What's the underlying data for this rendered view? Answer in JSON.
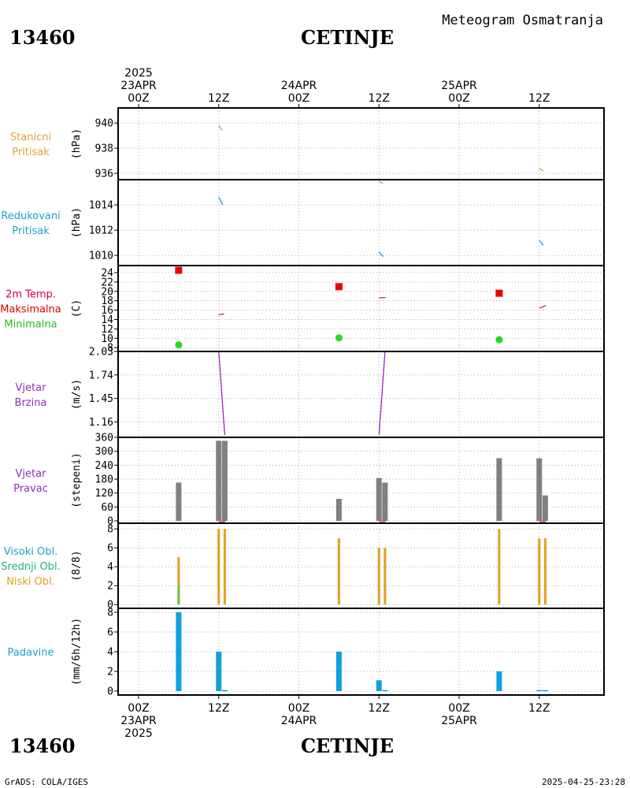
{
  "header": {
    "station_id": "13460",
    "station_name": "CETINJE",
    "product": "Meteogram Osmatranja"
  },
  "footer": {
    "station_id": "13460",
    "station_name": "CETINJE",
    "credit": "GrADS: COLA/IGES",
    "timestamp": "2025-04-25-23:28"
  },
  "time_axis": {
    "top_labels": [
      {
        "t": 0,
        "lines": [
          "2025",
          "23APR",
          "00Z"
        ]
      },
      {
        "t": 12,
        "lines": [
          "12Z"
        ]
      },
      {
        "t": 24,
        "lines": [
          "24APR",
          "00Z"
        ]
      },
      {
        "t": 36,
        "lines": [
          "12Z"
        ]
      },
      {
        "t": 48,
        "lines": [
          "25APR",
          "00Z"
        ]
      },
      {
        "t": 60,
        "lines": [
          "12Z"
        ]
      }
    ],
    "bottom_labels": [
      {
        "t": 0,
        "lines": [
          "00Z",
          "23APR",
          "2025"
        ]
      },
      {
        "t": 12,
        "lines": [
          "12Z"
        ]
      },
      {
        "t": 24,
        "lines": [
          "00Z",
          "24APR"
        ]
      },
      {
        "t": 36,
        "lines": [
          "12Z"
        ]
      },
      {
        "t": 48,
        "lines": [
          "00Z",
          "25APR"
        ]
      },
      {
        "t": 60,
        "lines": [
          "12Z"
        ]
      }
    ]
  },
  "chart_data": [
    {
      "type": "line",
      "panel": "station_pressure",
      "labels": [
        "Stanicni",
        "Pritisak"
      ],
      "label_color": "#e0a040",
      "unit": "(hPa)",
      "ylim": [
        935.5,
        941.2
      ],
      "yticks": [
        936,
        938,
        940
      ],
      "series": [
        {
          "color": "#e09040",
          "segments": [
            [
              [
                12,
                939.8
              ],
              [
                12.5,
                939.4
              ]
            ],
            [
              [
                36,
                935.4
              ],
              [
                36.6,
                935.2
              ]
            ],
            [
              [
                60,
                936.4
              ],
              [
                60.6,
                936.2
              ]
            ]
          ]
        }
      ]
    },
    {
      "type": "line",
      "panel": "reduced_pressure",
      "labels": [
        "Redukovani",
        "Pritisak"
      ],
      "label_color": "#20a0c8",
      "unit": "(hPa)",
      "ylim": [
        1009.2,
        1016.0
      ],
      "yticks": [
        1010,
        1012,
        1014
      ],
      "series": [
        {
          "color": "#2090d0",
          "segments": [
            [
              [
                12,
                1014.6
              ],
              [
                12.6,
                1014.0
              ]
            ],
            [
              [
                36,
                1010.3
              ],
              [
                36.6,
                1009.9
              ]
            ],
            [
              [
                60,
                1011.2
              ],
              [
                60.6,
                1010.8
              ]
            ]
          ]
        }
      ]
    },
    {
      "type": "scatter",
      "panel": "temperature",
      "labels": [
        "2m Temp.",
        "Maksimalna",
        "Minimalna"
      ],
      "label_colors": [
        "#d00040",
        "#e00000",
        "#20c020"
      ],
      "unit": "(C)",
      "ylim": [
        7.2,
        25.5
      ],
      "yticks": [
        8,
        10,
        12,
        14,
        16,
        18,
        20,
        22,
        24
      ],
      "max": {
        "color": "#ee0000",
        "points": [
          [
            6,
            24.5
          ],
          [
            30,
            21.0
          ],
          [
            54,
            19.6
          ]
        ]
      },
      "min": {
        "color": "#20dd20",
        "points": [
          [
            6,
            8.6
          ],
          [
            30,
            10.1
          ],
          [
            54,
            9.7
          ]
        ]
      },
      "series": [
        {
          "color": "#c02080",
          "segments": [
            [
              [
                12,
                15.0
              ],
              [
                12.8,
                15.2
              ]
            ],
            [
              [
                36,
                18.6
              ],
              [
                37,
                18.7
              ]
            ],
            [
              [
                60,
                16.4
              ],
              [
                61,
                17.0
              ]
            ]
          ]
        }
      ]
    },
    {
      "type": "line",
      "panel": "wind_speed",
      "labels": [
        "Vjetar",
        "Brzina"
      ],
      "label_color": "#9030b0",
      "unit": "(m/s)",
      "ylim": [
        0.97,
        2.03
      ],
      "yticks": [
        1.16,
        1.45,
        1.74,
        2.03
      ],
      "series": [
        {
          "color": "#a020c0",
          "segments": [
            [
              [
                12,
                2.03
              ],
              [
                12.9,
                1.0
              ]
            ],
            [
              [
                36,
                1.0
              ],
              [
                36.9,
                2.03
              ]
            ],
            [
              [
                60,
                2.03
              ],
              [
                61,
                2.03
              ]
            ]
          ]
        }
      ]
    },
    {
      "type": "bar",
      "panel": "wind_direction",
      "labels": [
        "Vjetar",
        "Pravac"
      ],
      "label_color": "#9030b0",
      "unit": "(stepeni)",
      "ylim": [
        -10,
        360
      ],
      "yticks": [
        0,
        60,
        120,
        180,
        240,
        300,
        360
      ],
      "bar_color": "#808080",
      "bars": [
        [
          6,
          165
        ],
        [
          12,
          345
        ],
        [
          12.9,
          345
        ],
        [
          30,
          95
        ],
        [
          36,
          185
        ],
        [
          36.9,
          165
        ],
        [
          54,
          270
        ],
        [
          60,
          270
        ],
        [
          60.9,
          110
        ]
      ],
      "calm_color": "#d04040",
      "calm_marks": [
        12.5,
        36.5,
        60.5
      ]
    },
    {
      "type": "bar",
      "panel": "cloud_cover",
      "labels": [
        "Visoki Obl.",
        "Srednji Obl.",
        "Niski Obl."
      ],
      "label_colors": [
        "#20a0c8",
        "#20b080",
        "#e0a020"
      ],
      "unit": "(8/8)",
      "ylim": [
        -0.4,
        8.6
      ],
      "yticks": [
        0,
        2,
        4,
        6,
        8
      ],
      "series": [
        {
          "name": "Niski Obl.",
          "color": "#e0a020",
          "bars": [
            [
              6,
              5
            ],
            [
              12,
              8
            ],
            [
              12.9,
              8
            ],
            [
              30,
              7
            ],
            [
              36,
              6
            ],
            [
              36.9,
              6
            ],
            [
              54,
              8
            ],
            [
              60,
              7
            ],
            [
              60.9,
              7
            ]
          ]
        },
        {
          "name": "Srednji Obl.",
          "color": "#70c040",
          "bars": [
            [
              6,
              2
            ]
          ]
        }
      ]
    },
    {
      "type": "bar",
      "panel": "precipitation",
      "labels": [
        "Padavine"
      ],
      "label_color": "#20a0c8",
      "unit": "(mm/6h/12h)",
      "ylim": [
        -0.4,
        8.4
      ],
      "yticks": [
        0,
        2,
        4,
        6,
        8
      ],
      "bar_color": "#10a0e0",
      "bars": [
        [
          6,
          8
        ],
        [
          12,
          4
        ],
        [
          12.9,
          0.1
        ],
        [
          30,
          4
        ],
        [
          36,
          1.1
        ],
        [
          36.9,
          0.1
        ],
        [
          54,
          2
        ],
        [
          60,
          0.1
        ],
        [
          60.9,
          0.1
        ]
      ]
    }
  ]
}
